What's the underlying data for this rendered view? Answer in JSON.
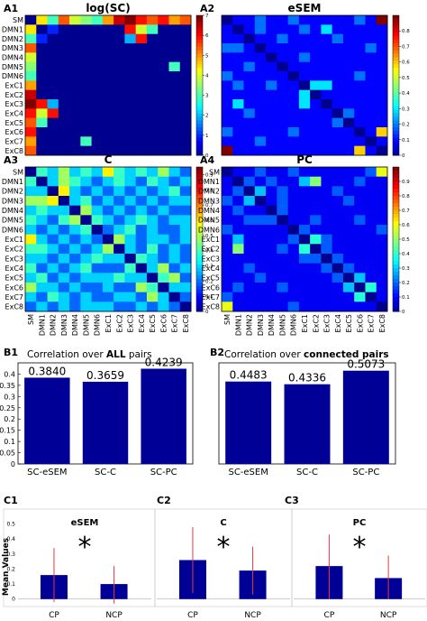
{
  "colors": {
    "bar": "#000096",
    "error_bar": "#e8383b",
    "frame": "#000000",
    "colormap": [
      "#00008f",
      "#0000ff",
      "#00ffff",
      "#ffff00",
      "#ff0000",
      "#800000"
    ]
  },
  "roi_labels": [
    "SM",
    "DMN1",
    "DMN2",
    "DMN3",
    "DMN4",
    "DMN5",
    "DMN6",
    "ExC1",
    "ExC2",
    "ExC3",
    "ExC4",
    "ExC5",
    "ExC6",
    "ExC7",
    "ExC8"
  ],
  "heatmaps": [
    {
      "panel": "A1",
      "title": "log(SC)",
      "vmin": 0,
      "vmax": 7,
      "cb_ticks": [
        "0",
        "1",
        "2",
        "3",
        "4",
        "5",
        "6",
        "7"
      ],
      "matrix": [
        [
          0,
          4.5,
          3,
          5.5,
          4,
          3.5,
          3,
          5,
          6.5,
          7,
          6,
          5.5,
          6,
          5,
          5.5
        ],
        [
          4.5,
          0,
          1,
          0,
          0,
          0,
          0,
          0,
          0,
          6,
          4,
          3,
          0,
          0,
          0
        ],
        [
          3,
          1,
          0,
          0,
          0,
          0,
          0,
          0,
          0,
          2,
          6,
          0,
          0,
          0,
          0
        ],
        [
          5.5,
          0,
          0,
          0,
          0,
          0,
          0,
          0,
          0,
          0,
          0,
          0,
          0,
          0,
          0
        ],
        [
          4,
          0,
          0,
          0,
          0,
          0,
          0,
          0,
          0,
          0,
          0,
          0,
          0,
          0,
          0
        ],
        [
          3.5,
          0,
          0,
          0,
          0,
          0,
          0,
          0,
          0,
          0,
          0,
          0,
          0,
          3,
          0
        ],
        [
          3,
          0,
          0,
          0,
          0,
          0,
          0,
          0,
          0,
          0,
          0,
          0,
          0,
          0,
          0
        ],
        [
          5,
          0,
          0,
          0,
          0,
          0,
          0,
          0,
          0,
          0,
          0,
          0,
          0,
          0,
          0
        ],
        [
          6.5,
          0,
          0,
          0,
          0,
          0,
          0,
          0,
          0,
          0,
          0,
          0,
          0,
          0,
          0
        ],
        [
          7,
          6,
          2,
          0,
          0,
          0,
          0,
          0,
          0,
          0,
          0,
          0,
          0,
          0,
          0
        ],
        [
          6,
          4,
          6,
          0,
          0,
          0,
          0,
          0,
          0,
          0,
          0,
          0,
          0,
          0,
          0
        ],
        [
          5.5,
          3,
          0,
          0,
          0,
          0,
          0,
          0,
          0,
          0,
          0,
          0,
          0,
          0,
          0
        ],
        [
          6,
          0,
          0,
          0,
          0,
          0,
          0,
          0,
          0,
          0,
          0,
          0,
          0,
          0,
          0
        ],
        [
          5,
          0,
          0,
          0,
          0,
          3,
          0,
          0,
          0,
          0,
          0,
          0,
          0,
          0,
          0
        ],
        [
          5.5,
          0,
          0,
          0,
          0,
          0,
          0,
          0,
          0,
          0,
          0,
          0,
          0,
          0,
          0
        ]
      ]
    },
    {
      "panel": "A2",
      "title": "eSEM",
      "vmin": 0,
      "vmax": 0.9,
      "cb_ticks": [
        "0",
        "0.1",
        "0.2",
        "0.3",
        "0.4",
        "0.5",
        "0.6",
        "0.7",
        "0.8"
      ],
      "matrix": [
        [
          0,
          0.1,
          0.1,
          0.2,
          0.1,
          0.1,
          0.2,
          0.1,
          0.1,
          0.1,
          0.1,
          0.1,
          0.2,
          0.1,
          0.9
        ],
        [
          0.1,
          0,
          0.1,
          0.2,
          0.1,
          0.1,
          0.1,
          0.2,
          0.1,
          0.3,
          0.1,
          0.1,
          0.1,
          0.1,
          0.1
        ],
        [
          0.1,
          0.1,
          0,
          0.1,
          0.1,
          0.2,
          0.1,
          0.1,
          0.1,
          0.1,
          0.2,
          0.1,
          0.1,
          0.1,
          0.1
        ],
        [
          0.2,
          0.2,
          0.1,
          0,
          0.1,
          0.1,
          0.1,
          0.1,
          0.1,
          0.1,
          0.1,
          0.1,
          0.1,
          0.2,
          0.1
        ],
        [
          0.1,
          0.1,
          0.1,
          0.1,
          0,
          0.1,
          0.1,
          0.2,
          0.1,
          0.1,
          0.1,
          0.1,
          0.1,
          0.1,
          0.1
        ],
        [
          0.1,
          0.1,
          0.2,
          0.1,
          0.1,
          0,
          0.1,
          0.1,
          0.1,
          0.1,
          0.1,
          0.1,
          0.1,
          0.1,
          0.1
        ],
        [
          0.2,
          0.1,
          0.1,
          0.1,
          0.1,
          0.1,
          0,
          0.1,
          0.1,
          0.1,
          0.1,
          0.1,
          0.2,
          0.1,
          0.1
        ],
        [
          0.1,
          0.2,
          0.1,
          0.1,
          0.2,
          0.1,
          0.1,
          0,
          0.3,
          0.3,
          0.1,
          0.1,
          0.1,
          0.1,
          0.1
        ],
        [
          0.1,
          0.1,
          0.1,
          0.1,
          0.1,
          0.1,
          0.1,
          0.3,
          0,
          0.1,
          0.1,
          0.1,
          0.1,
          0.1,
          0.1
        ],
        [
          0.1,
          0.3,
          0.1,
          0.1,
          0.1,
          0.1,
          0.1,
          0.3,
          0.1,
          0,
          0.1,
          0.1,
          0.1,
          0.1,
          0.1
        ],
        [
          0.1,
          0.1,
          0.2,
          0.1,
          0.1,
          0.1,
          0.1,
          0.1,
          0.1,
          0.1,
          0,
          0.2,
          0.1,
          0.1,
          0.1
        ],
        [
          0.1,
          0.1,
          0.1,
          0.1,
          0.1,
          0.1,
          0.1,
          0.1,
          0.1,
          0.1,
          0.2,
          0,
          0.1,
          0.1,
          0.1
        ],
        [
          0.2,
          0.1,
          0.1,
          0.1,
          0.1,
          0.1,
          0.2,
          0.1,
          0.1,
          0.1,
          0.1,
          0.1,
          0,
          0.1,
          0.6
        ],
        [
          0.1,
          0.1,
          0.1,
          0.2,
          0.1,
          0.1,
          0.1,
          0.1,
          0.1,
          0.1,
          0.1,
          0.1,
          0.1,
          0,
          0.1
        ],
        [
          0.9,
          0.1,
          0.1,
          0.1,
          0.1,
          0.1,
          0.1,
          0.1,
          0.1,
          0.1,
          0.1,
          0.1,
          0.6,
          0.1,
          0
        ]
      ]
    },
    {
      "panel": "A3",
      "title": "C",
      "vmin": 0,
      "vmax": 0.95,
      "cb_ticks": [
        "0",
        "0.1",
        "0.2",
        "0.3",
        "0.4",
        "0.5",
        "0.6",
        "0.7",
        "0.8",
        "0.9"
      ],
      "matrix": [
        [
          0,
          0.4,
          0.3,
          0.5,
          0.3,
          0.4,
          0.3,
          0.6,
          0.4,
          0.3,
          0.4,
          0.3,
          0.5,
          0.3,
          0.2
        ],
        [
          0.4,
          0,
          0.3,
          0.5,
          0.4,
          0.3,
          0.2,
          0.3,
          0.4,
          0.3,
          0.2,
          0.4,
          0.3,
          0.2,
          0.3
        ],
        [
          0.3,
          0.3,
          0,
          0.6,
          0.3,
          0.2,
          0.3,
          0.2,
          0.3,
          0.2,
          0.3,
          0.2,
          0.3,
          0.4,
          0.2
        ],
        [
          0.5,
          0.5,
          0.6,
          0,
          0.3,
          0.4,
          0.2,
          0.3,
          0.2,
          0.3,
          0.2,
          0.3,
          0.2,
          0.3,
          0.3
        ],
        [
          0.3,
          0.4,
          0.3,
          0.3,
          0,
          0.5,
          0.3,
          0.2,
          0.3,
          0.2,
          0.3,
          0.2,
          0.3,
          0.2,
          0.2
        ],
        [
          0.4,
          0.3,
          0.2,
          0.4,
          0.5,
          0,
          0.4,
          0.3,
          0.2,
          0.3,
          0.4,
          0.3,
          0.2,
          0.3,
          0.3
        ],
        [
          0.3,
          0.2,
          0.3,
          0.2,
          0.3,
          0.4,
          0,
          0.2,
          0.3,
          0.4,
          0.2,
          0.3,
          0.2,
          0.2,
          0.3
        ],
        [
          0.6,
          0.3,
          0.2,
          0.3,
          0.2,
          0.3,
          0.2,
          0,
          0.5,
          0.3,
          0.2,
          0.3,
          0.3,
          0.2,
          0.3
        ],
        [
          0.4,
          0.4,
          0.3,
          0.2,
          0.3,
          0.2,
          0.3,
          0.5,
          0,
          0.3,
          0.2,
          0.4,
          0.2,
          0.3,
          0.2
        ],
        [
          0.3,
          0.3,
          0.2,
          0.3,
          0.2,
          0.3,
          0.4,
          0.3,
          0.3,
          0,
          0.4,
          0.3,
          0.2,
          0.3,
          0.2
        ],
        [
          0.4,
          0.2,
          0.3,
          0.2,
          0.3,
          0.4,
          0.2,
          0.2,
          0.2,
          0.4,
          0,
          0.3,
          0.5,
          0.2,
          0.3
        ],
        [
          0.3,
          0.4,
          0.2,
          0.3,
          0.2,
          0.3,
          0.3,
          0.3,
          0.4,
          0.3,
          0.3,
          0,
          0.4,
          0.5,
          0.2
        ],
        [
          0.5,
          0.3,
          0.3,
          0.2,
          0.3,
          0.2,
          0.2,
          0.3,
          0.2,
          0.2,
          0.5,
          0.4,
          0,
          0.3,
          0.3
        ],
        [
          0.3,
          0.2,
          0.4,
          0.3,
          0.2,
          0.3,
          0.2,
          0.2,
          0.3,
          0.3,
          0.2,
          0.5,
          0.3,
          0,
          0.2
        ],
        [
          0.2,
          0.3,
          0.2,
          0.3,
          0.2,
          0.3,
          0.3,
          0.3,
          0.2,
          0.2,
          0.3,
          0.2,
          0.3,
          0.2,
          0
        ]
      ]
    },
    {
      "panel": "A4",
      "title": "PC",
      "vmin": 0,
      "vmax": 1,
      "cb_ticks": [
        "0",
        "0.1",
        "0.2",
        "0.3",
        "0.4",
        "0.5",
        "0.6",
        "0.7",
        "0.8",
        "0.9"
      ],
      "matrix": [
        [
          0,
          0.1,
          0.1,
          0.2,
          0.1,
          0.1,
          0.2,
          0.1,
          0.1,
          0.1,
          0.1,
          0.1,
          0.1,
          0.2,
          0.6
        ],
        [
          0.1,
          0,
          0.2,
          0.1,
          0.2,
          0.1,
          0.1,
          0.3,
          0.5,
          0.1,
          0.1,
          0.1,
          0.2,
          0.1,
          0.1
        ],
        [
          0.1,
          0.2,
          0,
          0.3,
          0.1,
          0.2,
          0.1,
          0.1,
          0.1,
          0.1,
          0.2,
          0.1,
          0.1,
          0.1,
          0.1
        ],
        [
          0.2,
          0.1,
          0.3,
          0,
          0.1,
          0.2,
          0.1,
          0.1,
          0.1,
          0.1,
          0.1,
          0.2,
          0.1,
          0.1,
          0.1
        ],
        [
          0.1,
          0.2,
          0.1,
          0.1,
          0,
          0.2,
          0.1,
          0.1,
          0.1,
          0.1,
          0.1,
          0.1,
          0.1,
          0.1,
          0.1
        ],
        [
          0.1,
          0.1,
          0.2,
          0.2,
          0.2,
          0,
          0.1,
          0.1,
          0.2,
          0.1,
          0.1,
          0.1,
          0.2,
          0.1,
          0.1
        ],
        [
          0.2,
          0.1,
          0.1,
          0.1,
          0.1,
          0.1,
          0,
          0.2,
          0.1,
          0.1,
          0.1,
          0.1,
          0.1,
          0.1,
          0.2
        ],
        [
          0.1,
          0.3,
          0.1,
          0.1,
          0.1,
          0.1,
          0.2,
          0,
          0.4,
          0.2,
          0.1,
          0.1,
          0.1,
          0.1,
          0.1
        ],
        [
          0.1,
          0.5,
          0.1,
          0.1,
          0.1,
          0.2,
          0.1,
          0.4,
          0,
          0.2,
          0.1,
          0.1,
          0.1,
          0.1,
          0.1
        ],
        [
          0.1,
          0.1,
          0.1,
          0.1,
          0.1,
          0.1,
          0.1,
          0.2,
          0.2,
          0,
          0.2,
          0.1,
          0.1,
          0.1,
          0.1
        ],
        [
          0.1,
          0.1,
          0.2,
          0.1,
          0.1,
          0.1,
          0.1,
          0.1,
          0.1,
          0.2,
          0,
          0.2,
          0.1,
          0.1,
          0.1
        ],
        [
          0.1,
          0.1,
          0.1,
          0.2,
          0.1,
          0.1,
          0.1,
          0.1,
          0.1,
          0.1,
          0.2,
          0,
          0.3,
          0.1,
          0.1
        ],
        [
          0.1,
          0.2,
          0.1,
          0.1,
          0.1,
          0.2,
          0.1,
          0.1,
          0.1,
          0.1,
          0.1,
          0.3,
          0,
          0.4,
          0.1
        ],
        [
          0.2,
          0.1,
          0.1,
          0.1,
          0.1,
          0.1,
          0.1,
          0.1,
          0.1,
          0.1,
          0.1,
          0.1,
          0.4,
          0,
          0.1
        ],
        [
          0.6,
          0.1,
          0.1,
          0.1,
          0.1,
          0.1,
          0.2,
          0.1,
          0.1,
          0.1,
          0.1,
          0.1,
          0.1,
          0.1,
          0
        ]
      ]
    }
  ],
  "chart_data": [
    {
      "panel": "B1",
      "type": "bar",
      "title_prefix": "Correlation over ",
      "title_bold": "ALL",
      "title_suffix": " pairs",
      "categories": [
        "SC-eSEM",
        "SC-C",
        "SC-PC"
      ],
      "values": [
        0.384,
        0.3659,
        0.4239
      ],
      "value_labels": [
        "0.3840",
        "0.3659",
        "0.4239"
      ],
      "ylim": [
        0,
        0.45
      ],
      "yticks": [
        "0",
        "0.05",
        "0.1",
        "0.15",
        "0.2",
        "0.25",
        "0.3",
        "0.35",
        "0.4"
      ]
    },
    {
      "panel": "B2",
      "type": "bar",
      "title_prefix": "Correlation over ",
      "title_bold": "connected pairs",
      "title_suffix": "",
      "categories": [
        "SC-eSEM",
        "SC-C",
        "SC-PC"
      ],
      "values": [
        0.4483,
        0.4336,
        0.5073
      ],
      "value_labels": [
        "0.4483",
        "0.4336",
        "0.5073"
      ],
      "ylim": [
        0,
        0.55
      ],
      "yticks": []
    },
    {
      "panel": "C1",
      "type": "bar",
      "title": "eSEM",
      "ylabel": "Mean Values",
      "categories": [
        "CP",
        "NCP"
      ],
      "values": [
        0.16,
        0.1
      ],
      "errors": [
        [
          -0.02,
          0.34
        ],
        [
          -0.03,
          0.22
        ]
      ],
      "ylim": [
        -0.05,
        0.6
      ],
      "yticks": [
        "0",
        "0.1",
        "0.2",
        "0.3",
        "0.4",
        "0.5"
      ],
      "annotation": "*"
    },
    {
      "panel": "C2",
      "type": "bar",
      "title": "C",
      "categories": [
        "CP",
        "NCP"
      ],
      "values": [
        0.26,
        0.19
      ],
      "errors": [
        [
          0.04,
          0.48
        ],
        [
          0.03,
          0.35
        ]
      ],
      "ylim": [
        -0.05,
        0.6
      ],
      "annotation": "*"
    },
    {
      "panel": "C3",
      "type": "bar",
      "title": "PC",
      "categories": [
        "CP",
        "NCP"
      ],
      "values": [
        0.22,
        0.14
      ],
      "errors": [
        [
          0.0,
          0.43
        ],
        [
          0.0,
          0.29
        ]
      ],
      "ylim": [
        -0.05,
        0.6
      ],
      "annotation": "*"
    }
  ]
}
